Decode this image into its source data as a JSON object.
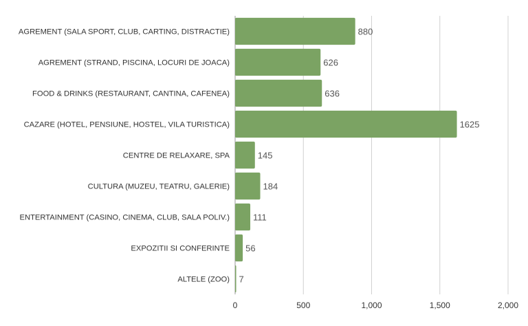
{
  "chart_data": {
    "type": "bar",
    "orientation": "horizontal",
    "categories": [
      "AGREMENT (SALA SPORT, CLUB, CARTING, DISTRACTIE)",
      "AGREMENT (STRAND, PISCINA, LOCURI DE JOACA)",
      "FOOD & DRINKS (RESTAURANT, CANTINA, CAFENEA)",
      "CAZARE (HOTEL, PENSIUNE, HOSTEL, VILA TURISTICA)",
      "CENTRE DE RELAXARE, SPA",
      "CULTURA (MUZEU, TEATRU, GALERIE)",
      "ENTERTAINMENT (CASINO, CINEMA, CLUB, SALA POLIV.)",
      "EXPOZITII SI CONFERINTE",
      "ALTELE (ZOO)"
    ],
    "values": [
      880,
      626,
      636,
      1625,
      145,
      184,
      111,
      56,
      7
    ],
    "value_labels": [
      "880",
      "626",
      "636",
      "1625",
      "145",
      "184",
      "111",
      "56",
      "7"
    ],
    "xlim": [
      0,
      2000
    ],
    "x_ticks": [
      0,
      500,
      1000,
      1500,
      2000
    ],
    "x_tick_labels": [
      "0",
      "500",
      "1,000",
      "1,500",
      "2,000"
    ],
    "title": "",
    "xlabel": "",
    "ylabel": "",
    "grid": true,
    "legend": "none",
    "bar_color": "#7ba363",
    "grid_color": "#d0d0d0",
    "label_color": "#333333",
    "value_label_color": "#555555"
  }
}
